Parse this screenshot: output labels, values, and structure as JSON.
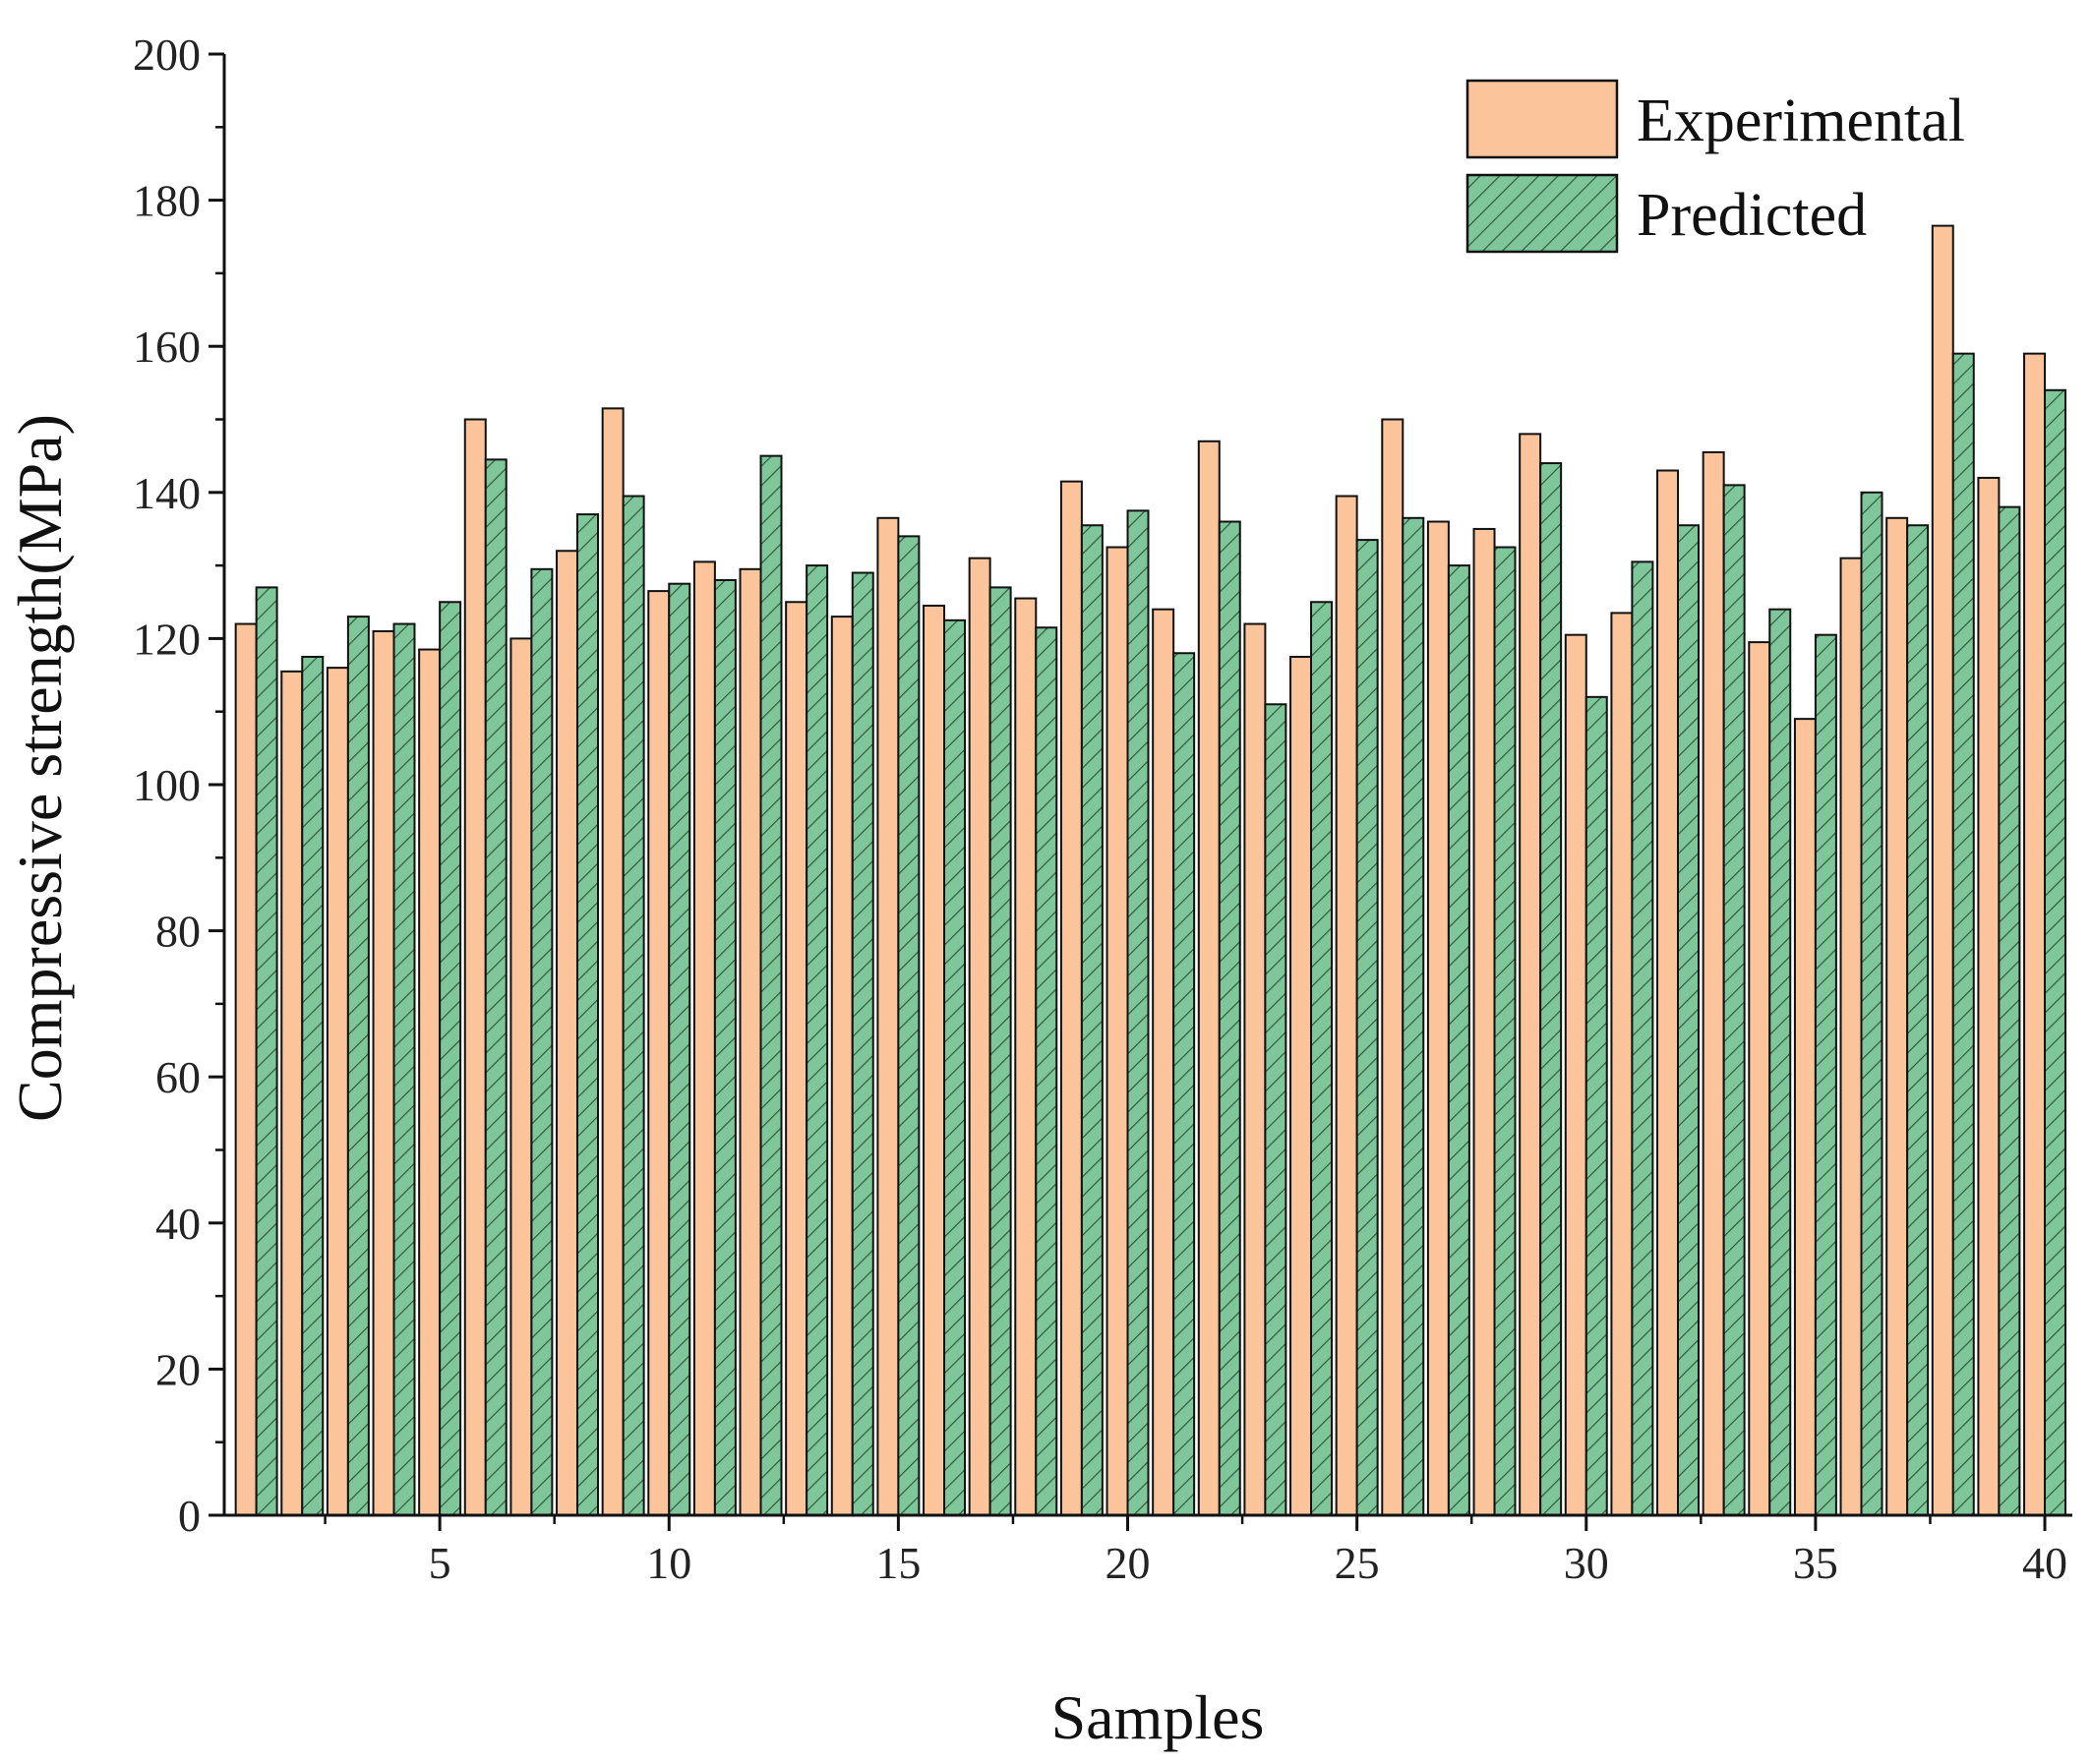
{
  "chart_data": {
    "type": "bar",
    "title": "",
    "xlabel": "Samples",
    "ylabel": "Compressive strength(MPa)",
    "ylim": [
      0,
      200
    ],
    "yticks": [
      0,
      20,
      40,
      60,
      80,
      100,
      120,
      140,
      160,
      180,
      200
    ],
    "xticks": [
      5,
      10,
      15,
      20,
      25,
      30,
      35,
      40
    ],
    "xlim": [
      0.3,
      40.6
    ],
    "legend_position": "top-right",
    "grid": false,
    "categories": [
      1,
      2,
      3,
      4,
      5,
      6,
      7,
      8,
      9,
      10,
      11,
      12,
      13,
      14,
      15,
      16,
      17,
      18,
      19,
      20,
      21,
      22,
      23,
      24,
      25,
      26,
      27,
      28,
      29,
      30,
      31,
      32,
      33,
      34,
      35,
      36,
      37,
      38,
      39,
      40
    ],
    "series": [
      {
        "name": "Experimental",
        "color": "#FBC49B",
        "values": [
          122,
          115.5,
          116,
          121,
          118.5,
          150,
          120,
          132,
          151.5,
          126.5,
          130.5,
          129.5,
          125,
          123,
          136.5,
          124.5,
          131,
          125.5,
          141.5,
          132.5,
          124,
          147,
          122,
          117.5,
          139.5,
          150,
          136,
          135,
          148,
          120.5,
          123.5,
          143,
          145.5,
          119.5,
          109,
          131,
          136.5,
          176.5,
          142,
          159
        ]
      },
      {
        "name": "Predicted",
        "color": "#7FC79A",
        "pattern": "diagonal-hatch",
        "values": [
          127,
          117.5,
          123,
          122,
          125,
          144.5,
          129.5,
          137,
          139.5,
          127.5,
          128,
          145,
          130,
          129,
          134,
          122.5,
          127,
          121.5,
          135.5,
          137.5,
          118,
          136,
          111,
          125,
          133.5,
          136.5,
          130,
          132.5,
          144,
          112,
          130.5,
          135.5,
          141,
          124,
          120.5,
          140,
          135.5,
          159,
          138,
          154
        ]
      }
    ]
  }
}
